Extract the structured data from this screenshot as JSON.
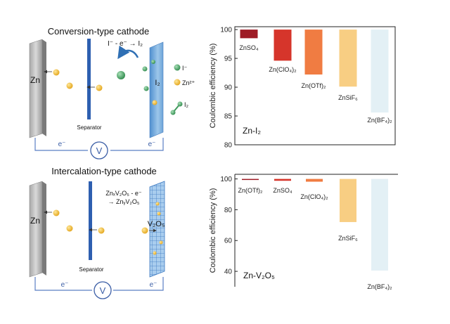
{
  "colors": {
    "electrode_dark": "#8a8a8a",
    "electrode_light": "#c8c8c8",
    "separator": "#2e5fb0",
    "cathode_blue": "#7fb0dc",
    "circuit": "#5b7fc4",
    "zn_ion": "#f0b323",
    "iodide": "#3f9a5c",
    "arrow": "#2f6fb4"
  },
  "diagram_top": {
    "title": "Conversion-type cathode",
    "anode_label": "Zn",
    "separator_label": "Separator",
    "cathode_label": "I₂",
    "reaction": "I⁻ - e⁻ → I₂",
    "electron_left": "e⁻",
    "electron_right": "e⁻",
    "voltmeter": "V",
    "legend": [
      {
        "label": "I⁻",
        "icon": "green-sphere"
      },
      {
        "label": "Zn²⁺",
        "icon": "yellow-sphere"
      },
      {
        "label": "I₂",
        "icon": "green-dumbbell"
      }
    ]
  },
  "diagram_bottom": {
    "title": "Intercalation-type cathode",
    "anode_label": "Zn",
    "separator_label": "Separator",
    "cathode_label": "V₂O₅",
    "reaction_line1": "ZnₓV₂O₅ - e⁻",
    "reaction_line2": "→ ZnᵧV₂O₅",
    "electron_left": "e⁻",
    "electron_right": "e⁻",
    "voltmeter": "V"
  },
  "chart_data": [
    {
      "type": "bar",
      "categories": [
        "ZnSO₄",
        "Zn(ClO₄)₂",
        "Zn(OTf)₂",
        "ZnSiF₆",
        "Zn(BF₄)₂"
      ],
      "series": [
        {
          "values_low": [
            98.5,
            94.6,
            92.2,
            90.1,
            85.6
          ],
          "values_high": [
            100,
            100,
            100,
            100,
            100
          ]
        }
      ],
      "bar_colors": [
        "#9e1b25",
        "#d6352b",
        "#f07c42",
        "#f8ce83",
        "#e3f0f5"
      ],
      "ylabel": "Coulombic efficiency (%)",
      "ylim": [
        80,
        100.5
      ],
      "yticks": [
        80,
        85,
        90,
        95,
        100
      ],
      "annotation": "Zn-I₂"
    },
    {
      "type": "bar",
      "categories": [
        "Zn(OTf)₂",
        "ZnSO₄",
        "Zn(ClO₄)₂",
        "ZnSiF₆",
        "Zn(BF₄)₂"
      ],
      "series": [
        {
          "values_low": [
            99.6,
            98.8,
            98.2,
            72,
            40.5
          ],
          "values_high": [
            100,
            100,
            100,
            100,
            100
          ]
        }
      ],
      "bar_colors": [
        "#9e1b25",
        "#d6352b",
        "#f07c42",
        "#f8ce83",
        "#e3f0f5"
      ],
      "ylabel": "Coulombic efficiency (%)",
      "ylim": [
        30,
        103
      ],
      "yticks": [
        40,
        60,
        80,
        100
      ],
      "annotation": "Zn-V₂O₅"
    }
  ]
}
